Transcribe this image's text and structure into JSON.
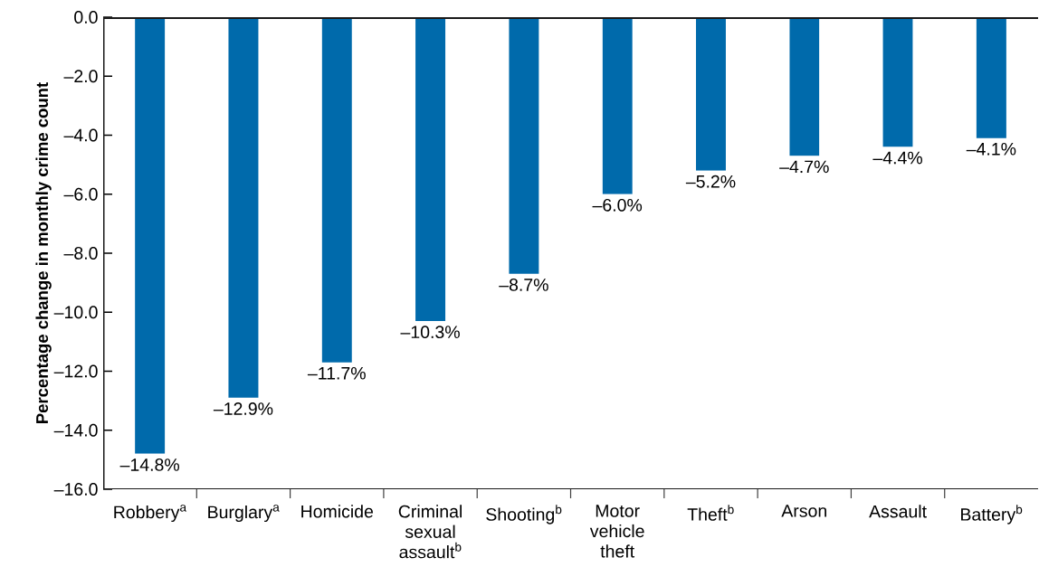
{
  "chart_data": {
    "type": "bar",
    "ylabel": "Percentage change in monthly crime count",
    "categories": [
      "Robbery$^{a}$",
      "Burglary$^{a}$",
      "Homicide",
      "Criminal sexual assault$^{b}$",
      "Shooting$^{b}$",
      "Motor vehicle theft",
      "Theft$^{b}$",
      "Arson",
      "Assault",
      "Battery$^{b}$"
    ],
    "values": [
      -14.8,
      -12.9,
      -11.7,
      -10.3,
      -8.7,
      -6.0,
      -5.2,
      -4.7,
      -4.4,
      -4.1
    ],
    "color": "#006aab",
    "value_labels": [
      "–14.8%",
      "–12.9%",
      "–11.7%",
      "–10.3%",
      "–8.7%",
      "–6.0%",
      "–5.2%",
      "–4.7%",
      "–4.4%",
      "–4.1%"
    ],
    "ylim": [
      -16,
      0
    ],
    "yticks": [
      {
        "value": 0,
        "label": "0.0"
      },
      {
        "value": -2,
        "label": "–2.0"
      },
      {
        "value": -4,
        "label": "–4.0"
      },
      {
        "value": -6,
        "label": "–6.0"
      },
      {
        "value": -8,
        "label": "–8.0"
      },
      {
        "value": -10,
        "label": "–10.0"
      },
      {
        "value": -12,
        "label": "–12.0"
      },
      {
        "value": -14,
        "label": "–14.0"
      },
      {
        "value": -16,
        "label": "–16.0"
      }
    ]
  }
}
